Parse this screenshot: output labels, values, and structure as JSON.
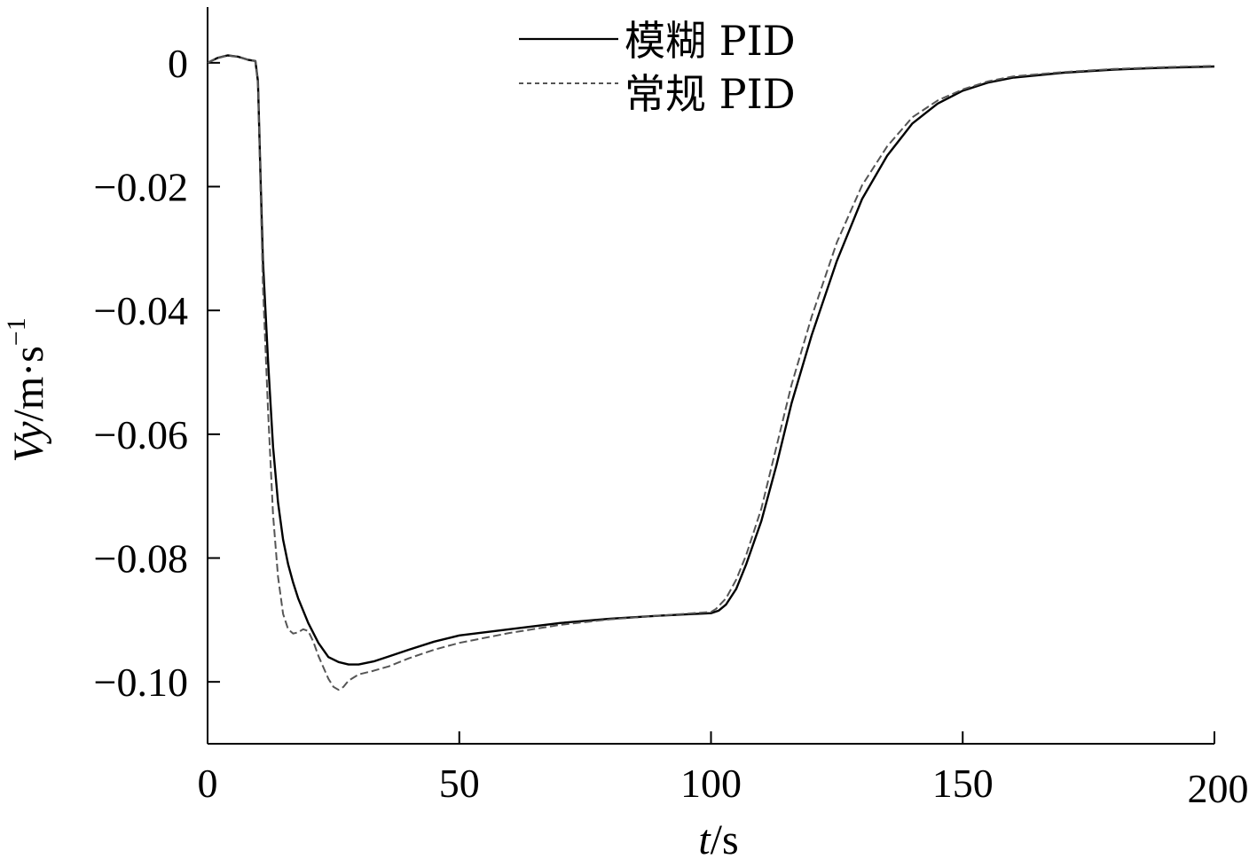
{
  "chart_data": {
    "type": "line",
    "title": "",
    "xlabel": {
      "italic": "t",
      "rest": "/s"
    },
    "ylabel": {
      "italic": "Vy",
      "rest": "/m·s",
      "sup": "−1"
    },
    "xlim": [
      0,
      200
    ],
    "ylim": [
      -0.11,
      0.009
    ],
    "xticks": [
      0,
      50,
      100,
      150,
      200
    ],
    "xtick_labels": [
      "0",
      "50",
      "100",
      "150",
      "200"
    ],
    "yticks": [
      0,
      -0.02,
      -0.04,
      -0.06,
      -0.08,
      -0.1
    ],
    "ytick_labels": [
      "0",
      "−0.02",
      "−0.04",
      "−0.06",
      "−0.08",
      "−0.10"
    ],
    "grid": false,
    "legend_position": "top-center",
    "series": [
      {
        "name": "模糊 PID",
        "style": "solid",
        "color": "#000000",
        "x": [
          0,
          2,
          4,
          6,
          8,
          9.5,
          10,
          10.5,
          11,
          12,
          13,
          14,
          15,
          16,
          17,
          18,
          20,
          22,
          24,
          26,
          28,
          30,
          33,
          36,
          40,
          45,
          50,
          60,
          70,
          80,
          90,
          100,
          101.5,
          103,
          105,
          107,
          110,
          113,
          116,
          120,
          125,
          130,
          135,
          140,
          145,
          150,
          155,
          160,
          170,
          180,
          190,
          200
        ],
        "y": [
          0,
          0.0008,
          0.0012,
          0.001,
          0.0005,
          0.0003,
          -0.003,
          -0.018,
          -0.032,
          -0.048,
          -0.062,
          -0.071,
          -0.077,
          -0.081,
          -0.084,
          -0.0865,
          -0.0905,
          -0.0937,
          -0.096,
          -0.0968,
          -0.0972,
          -0.0972,
          -0.0967,
          -0.0959,
          -0.0948,
          -0.0935,
          -0.0925,
          -0.0915,
          -0.0905,
          -0.0898,
          -0.0893,
          -0.0889,
          -0.0885,
          -0.0875,
          -0.085,
          -0.081,
          -0.074,
          -0.065,
          -0.055,
          -0.044,
          -0.032,
          -0.022,
          -0.015,
          -0.0098,
          -0.0066,
          -0.0045,
          -0.0032,
          -0.0024,
          -0.0016,
          -0.0011,
          -0.0008,
          -0.0006
        ]
      },
      {
        "name": "常规 PID",
        "style": "dashed",
        "color": "#555555",
        "x": [
          0,
          2,
          4,
          6,
          8,
          9.5,
          10,
          10.5,
          11,
          12,
          13,
          14,
          15,
          16,
          17,
          18,
          19,
          20,
          21,
          22,
          24,
          25,
          26,
          27,
          28,
          30,
          33,
          36,
          40,
          45,
          50,
          60,
          70,
          80,
          90,
          100,
          101,
          103,
          105,
          107,
          110,
          113,
          116,
          120,
          125,
          130,
          135,
          140,
          145,
          150,
          155,
          160,
          170,
          180,
          190,
          200
        ],
        "y": [
          0,
          0.0008,
          0.0012,
          0.001,
          0.0005,
          0.0003,
          -0.003,
          -0.02,
          -0.036,
          -0.056,
          -0.073,
          -0.083,
          -0.089,
          -0.0915,
          -0.0922,
          -0.092,
          -0.0915,
          -0.0918,
          -0.0935,
          -0.0958,
          -0.0995,
          -0.1008,
          -0.1013,
          -0.1008,
          -0.0998,
          -0.0988,
          -0.0982,
          -0.0975,
          -0.0962,
          -0.0948,
          -0.0937,
          -0.0921,
          -0.0908,
          -0.0899,
          -0.0893,
          -0.0887,
          -0.0882,
          -0.0865,
          -0.0835,
          -0.0795,
          -0.072,
          -0.062,
          -0.052,
          -0.041,
          -0.029,
          -0.0198,
          -0.0135,
          -0.0088,
          -0.0061,
          -0.0043,
          -0.003,
          -0.0022,
          -0.0015,
          -0.001,
          -0.0007,
          -0.0005
        ]
      }
    ]
  }
}
